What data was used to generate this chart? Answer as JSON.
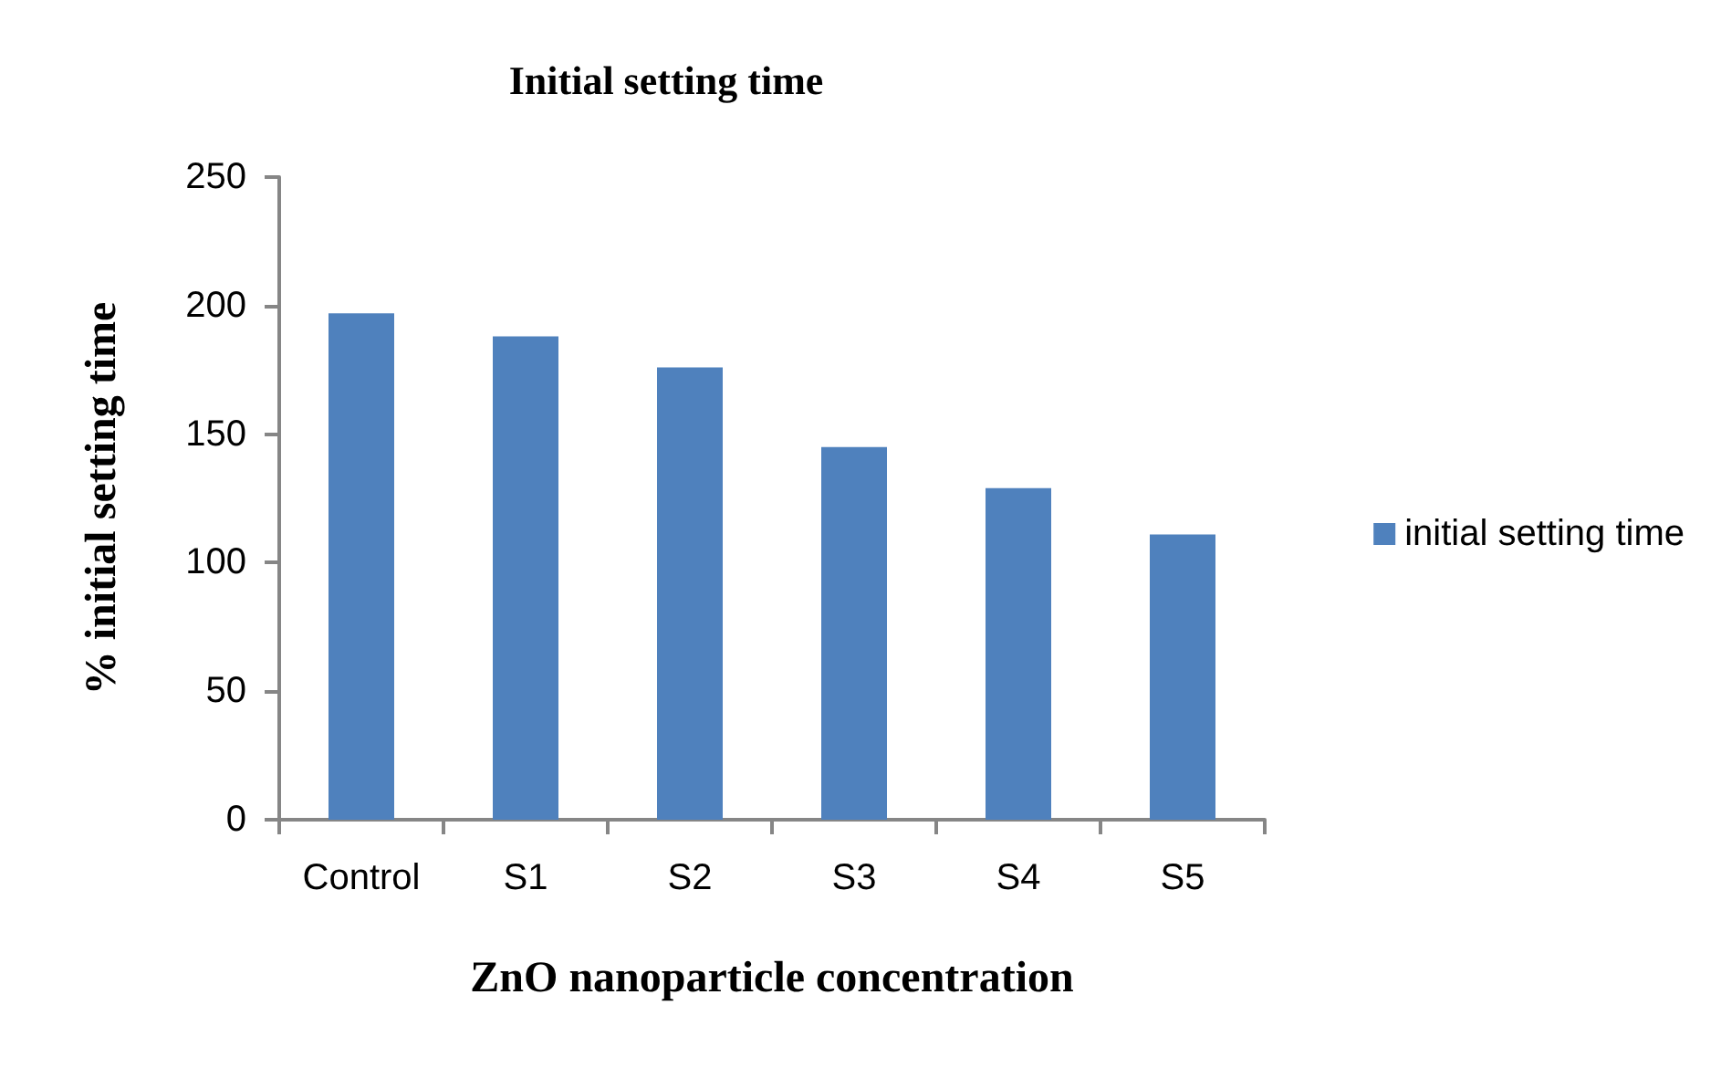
{
  "chart_data": {
    "type": "bar",
    "title": "Initial setting time",
    "xlabel": "ZnO nanoparticle concentration",
    "ylabel": "% initial setting time",
    "categories": [
      "Control",
      "S1",
      "S2",
      "S3",
      "S4",
      "S5"
    ],
    "series": [
      {
        "name": "initial setting time",
        "color": "#4f81bd",
        "values": [
          197,
          188,
          176,
          145,
          129,
          111
        ]
      }
    ],
    "ylim": [
      0,
      250
    ],
    "yticks": [
      0,
      50,
      100,
      150,
      200,
      250
    ],
    "grid": false,
    "legend": "right"
  }
}
